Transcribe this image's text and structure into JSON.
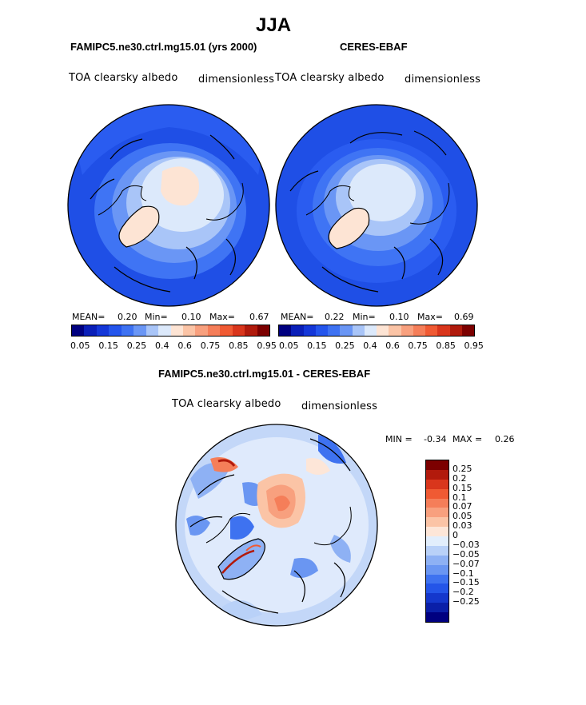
{
  "figure_title": "JJA",
  "panels": {
    "left": {
      "case": "FAMIPC5.ne30.ctrl.mg15.01 (yrs 2000)",
      "variable": "TOA clearsky albedo",
      "units": "dimensionless",
      "mean_label": "MEAN=",
      "mean": "0.20",
      "min_label": "Min=",
      "min": "0.10",
      "max_label": "Max=",
      "max": "0.67"
    },
    "right": {
      "case": "CERES-EBAF",
      "variable": "TOA clearsky albedo",
      "units": "dimensionless",
      "mean_label": "MEAN=",
      "mean": "0.22",
      "min_label": "Min=",
      "min": "0.10",
      "max_label": "Max=",
      "max": "0.69"
    },
    "diff": {
      "case": "FAMIPC5.ne30.ctrl.mg15.01 - CERES-EBAF",
      "variable": "TOA clearsky albedo",
      "units": "dimensionless",
      "min_label": "MIN =",
      "min": "-0.34",
      "max_label": "MAX =",
      "max": "0.26"
    }
  },
  "abs_colorbar": {
    "colors": [
      "#000080",
      "#0a1fb8",
      "#1437d8",
      "#2455ec",
      "#3e72f2",
      "#6a96f5",
      "#a9c5f8",
      "#dce9fb",
      "#fde4d4",
      "#fbc4a6",
      "#f8a07e",
      "#f57e59",
      "#f05a33",
      "#d9361c",
      "#b01a0c",
      "#7c0000"
    ],
    "ticks": [
      "0.05",
      "0.15",
      "0.25",
      "0.4",
      "0.6",
      "0.75",
      "0.85",
      "0.95"
    ]
  },
  "diff_colorbar": {
    "colors": [
      "#7c0000",
      "#b21a0c",
      "#d9361c",
      "#f05a33",
      "#f57e59",
      "#f8a07e",
      "#fbc4a6",
      "#fde6d8",
      "#e2eefc",
      "#b9d1f8",
      "#8eb1f4",
      "#6a96f2",
      "#3e72f0",
      "#2455e8",
      "#1437cc",
      "#0a1fa8",
      "#000080"
    ],
    "ticks": [
      "0.25",
      "0.2",
      "0.15",
      "0.1",
      "0.07",
      "0.05",
      "0.03",
      "0",
      "-0.03",
      "-0.05",
      "-0.07",
      "-0.1",
      "-0.15",
      "-0.2",
      "-0.25"
    ]
  }
}
